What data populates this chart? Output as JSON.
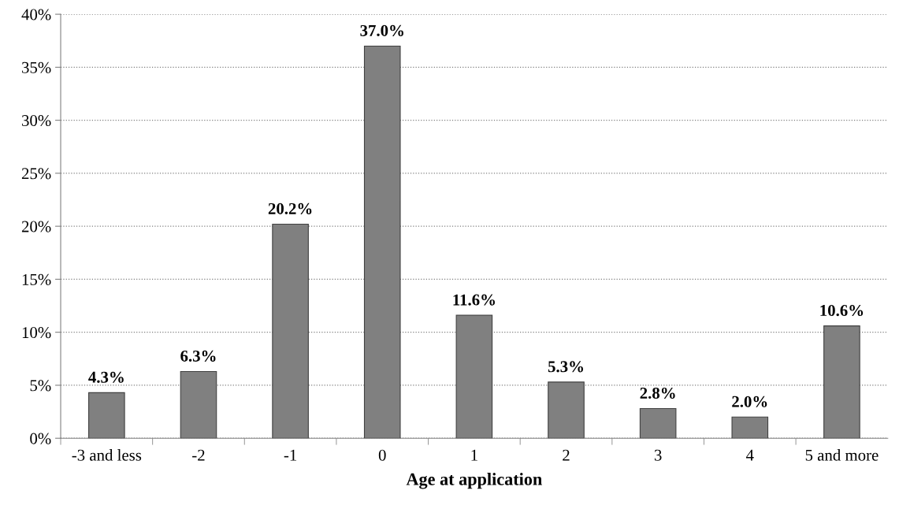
{
  "chart_data": {
    "type": "bar",
    "xlabel": "Age at application",
    "categories": [
      "-3 and less",
      "-2",
      "-1",
      "0",
      "1",
      "2",
      "3",
      "4",
      "5 and more"
    ],
    "values": [
      4.3,
      6.3,
      20.2,
      37.0,
      11.6,
      5.3,
      2.8,
      2.0,
      10.6
    ],
    "value_labels": [
      "4.3%",
      "6.3%",
      "20.2%",
      "37.0%",
      "11.6%",
      "5.3%",
      "2.8%",
      "2.0%",
      "10.6%"
    ],
    "color": "#808080",
    "ylim": [
      0,
      40
    ],
    "yticks": [
      {
        "value": 0,
        "label": "0%"
      },
      {
        "value": 5,
        "label": "5%"
      },
      {
        "value": 10,
        "label": "10%"
      },
      {
        "value": 15,
        "label": "15%"
      },
      {
        "value": 20,
        "label": "20%"
      },
      {
        "value": 25,
        "label": "25%"
      },
      {
        "value": 30,
        "label": "30%"
      },
      {
        "value": 35,
        "label": "35%"
      },
      {
        "value": 40,
        "label": "40%"
      }
    ],
    "grid": "y"
  }
}
